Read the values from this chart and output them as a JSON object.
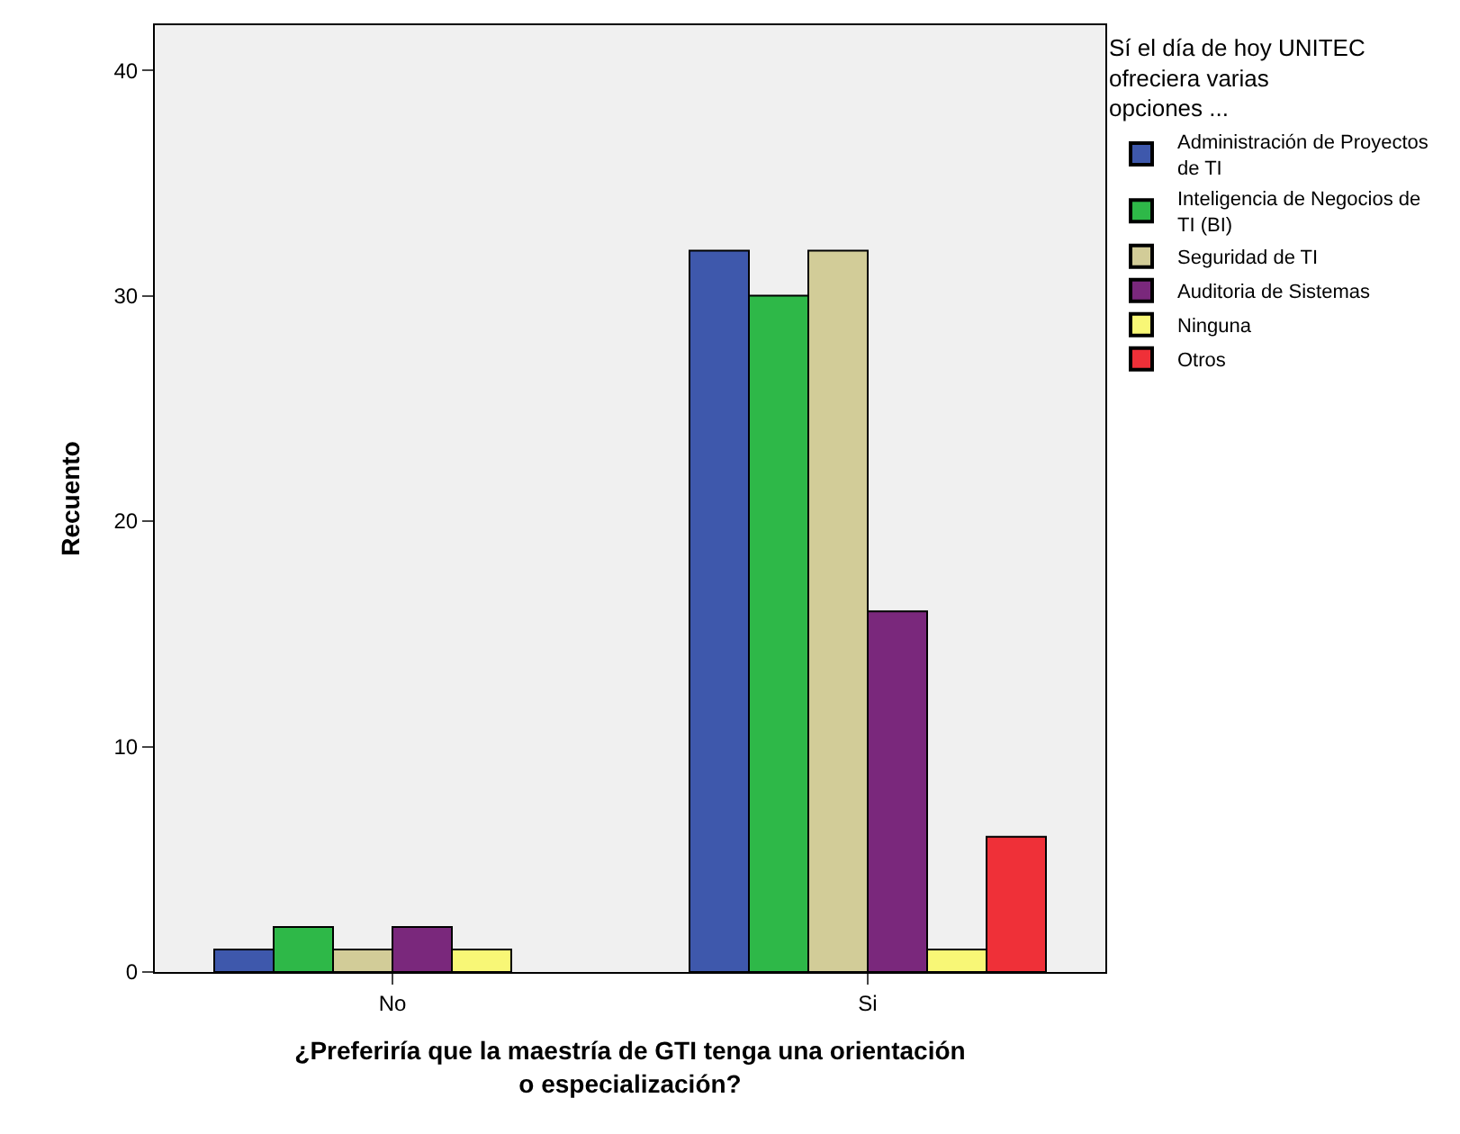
{
  "chart_data": {
    "type": "bar",
    "xlabel": "¿Preferiría que la maestría de GTI tenga una orientación\no especialización?",
    "ylabel": "Recuento",
    "legend_title": "Sí el día de hoy UNITEC\nofreciera varias\nopciones ...",
    "categories": [
      "No",
      "Si"
    ],
    "series": [
      {
        "name": "Administración de Proyectos de TI",
        "color": "#3e58ac",
        "values": [
          1,
          32
        ]
      },
      {
        "name": "Inteligencia de Negocios de TI (BI)",
        "color": "#2eb848",
        "values": [
          2,
          30
        ]
      },
      {
        "name": "Seguridad de TI",
        "color": "#d2cc98",
        "values": [
          1,
          32
        ]
      },
      {
        "name": "Auditoria de Sistemas",
        "color": "#7a287c",
        "values": [
          2,
          16
        ]
      },
      {
        "name": "Ninguna",
        "color": "#f8f776",
        "values": [
          1,
          1
        ]
      },
      {
        "name": "Otros",
        "color": "#ef3038",
        "values": [
          null,
          6
        ]
      }
    ],
    "ylim": [
      0,
      42
    ],
    "yticks": [
      0,
      10,
      20,
      30,
      40
    ],
    "grid": false,
    "legend": "top right"
  }
}
